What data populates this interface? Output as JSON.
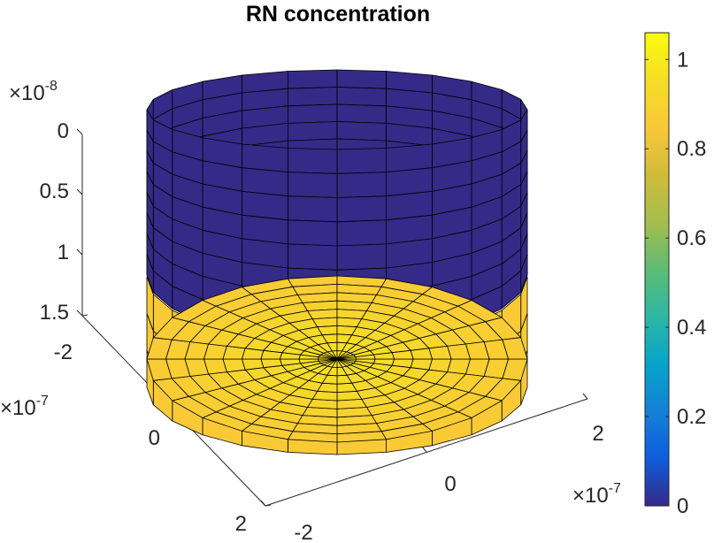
{
  "chart_data": {
    "type": "surface3d",
    "title": "RN concentration",
    "xlabel": "",
    "ylabel": "",
    "zlabel": "",
    "colormap": "parula",
    "grid": "off",
    "shape": "cylinder",
    "x_axis": {
      "ticks": [
        "-2",
        "0",
        "2"
      ],
      "multiplier": {
        "base": "×10",
        "exp": "-7"
      }
    },
    "y_axis": {
      "ticks": [
        "-2",
        "0",
        "2"
      ],
      "multiplier": {
        "base": "×10",
        "exp": "-7"
      }
    },
    "z_axis": {
      "ticks": [
        "0",
        "0.5",
        "1",
        "1.5"
      ],
      "direction": "reversed",
      "multiplier": {
        "base": "×10",
        "exp": "-8"
      }
    },
    "cylinder": {
      "radius": 2.2e-07,
      "angular_segments": 24,
      "side_bands": 8,
      "upper_side_value": 0.0,
      "lower_side_value": 0.86,
      "bottom_disc_rings": 10,
      "bottom_disc_center_value": 0.97,
      "bottom_disc_edge_value": 0.86
    },
    "colorbar": {
      "ticks": [
        "0",
        "0.2",
        "0.4",
        "0.6",
        "0.8",
        "1"
      ],
      "range": [
        0,
        1.06
      ]
    }
  }
}
